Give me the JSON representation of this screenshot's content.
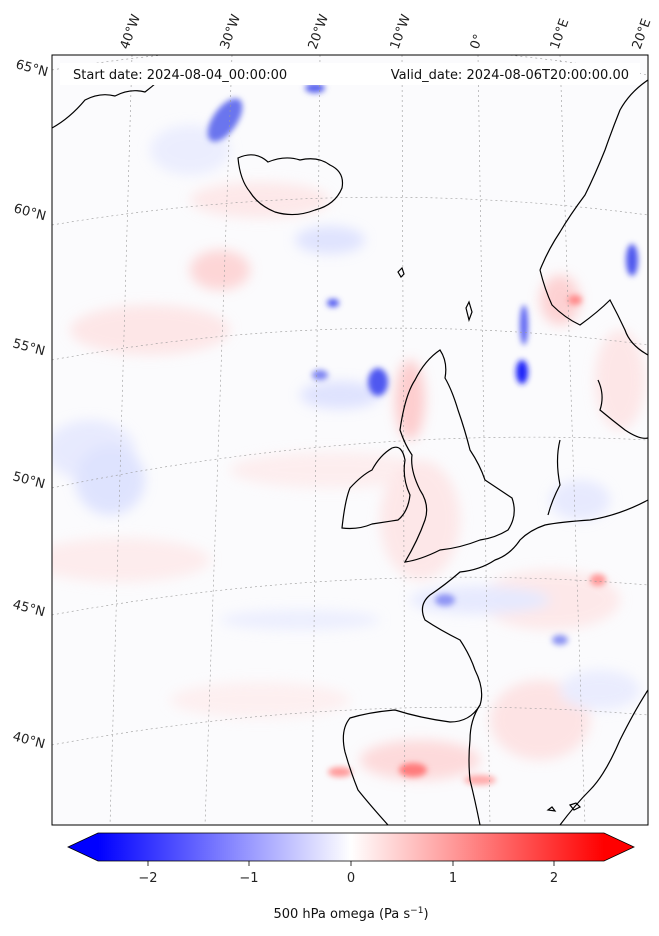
{
  "map": {
    "start_label": "Start date: 2024-08-04_00:00:00",
    "valid_label": "Valid_date: 2024-08-06T20:00:00.00",
    "lon_labels": [
      "40°W",
      "30°W",
      "20°W",
      "10°W",
      "0°",
      "10°E",
      "20°E"
    ],
    "lat_labels": [
      "65°N",
      "60°N",
      "55°N",
      "50°N",
      "45°N",
      "40°N"
    ],
    "field": "500 hPa omega",
    "units_prefix": "500 hPa omega (Pa s",
    "units_exp": "−1",
    "units_suffix": ")",
    "colorbar_ticks": [
      "−2",
      "−1",
      "0",
      "1",
      "2"
    ],
    "colorbar_range": [
      -2.5,
      2.5
    ],
    "colors": {
      "negative": "#0000ff",
      "zero": "#ffffff",
      "positive": "#ff0000",
      "coast": "#000000"
    }
  }
}
